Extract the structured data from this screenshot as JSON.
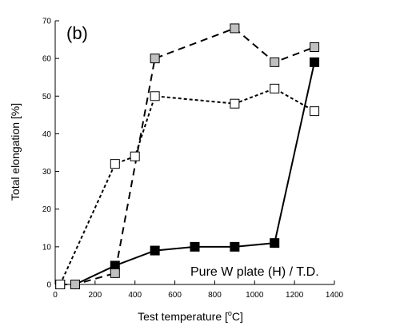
{
  "chart_data": {
    "type": "line",
    "panel_label": "(b)",
    "annotation": "Pure W plate (H) / T.D.",
    "xlabel": "Test temperature [°C]",
    "xlabel_main": "Test temperature [",
    "xlabel_sup": "o",
    "xlabel_tail": "C]",
    "ylabel": "Total elongation [%]",
    "xlim": [
      0,
      1400
    ],
    "ylim": [
      0,
      70
    ],
    "xticks": [
      0,
      200,
      400,
      600,
      800,
      1000,
      1200,
      1400
    ],
    "yticks": [
      0,
      10,
      20,
      30,
      40,
      50,
      60,
      70
    ],
    "xtick_labels": [
      "0",
      "200",
      "400",
      "600",
      "800",
      "1000",
      "1200",
      "1400"
    ],
    "ytick_labels": [
      "0",
      "10",
      "20",
      "30",
      "40",
      "50",
      "60",
      "70"
    ],
    "grid": false,
    "series": [
      {
        "marker": "square",
        "fill": "#000000",
        "line": "solid",
        "x": [
          100,
          300,
          500,
          700,
          900,
          1100,
          1300
        ],
        "y": [
          0,
          5,
          9,
          10,
          10,
          11,
          59
        ]
      },
      {
        "marker": "square",
        "fill": "#c0c0c0",
        "line": "dashed",
        "x": [
          25,
          100,
          300,
          500,
          900,
          1100,
          1300
        ],
        "y": [
          0,
          0,
          3,
          60,
          68,
          59,
          63
        ]
      },
      {
        "marker": "square",
        "fill": "#ffffff",
        "line": "dotted",
        "x": [
          25,
          300,
          400,
          500,
          900,
          1100,
          1300
        ],
        "y": [
          0,
          32,
          34,
          50,
          48,
          52,
          46
        ]
      }
    ]
  }
}
